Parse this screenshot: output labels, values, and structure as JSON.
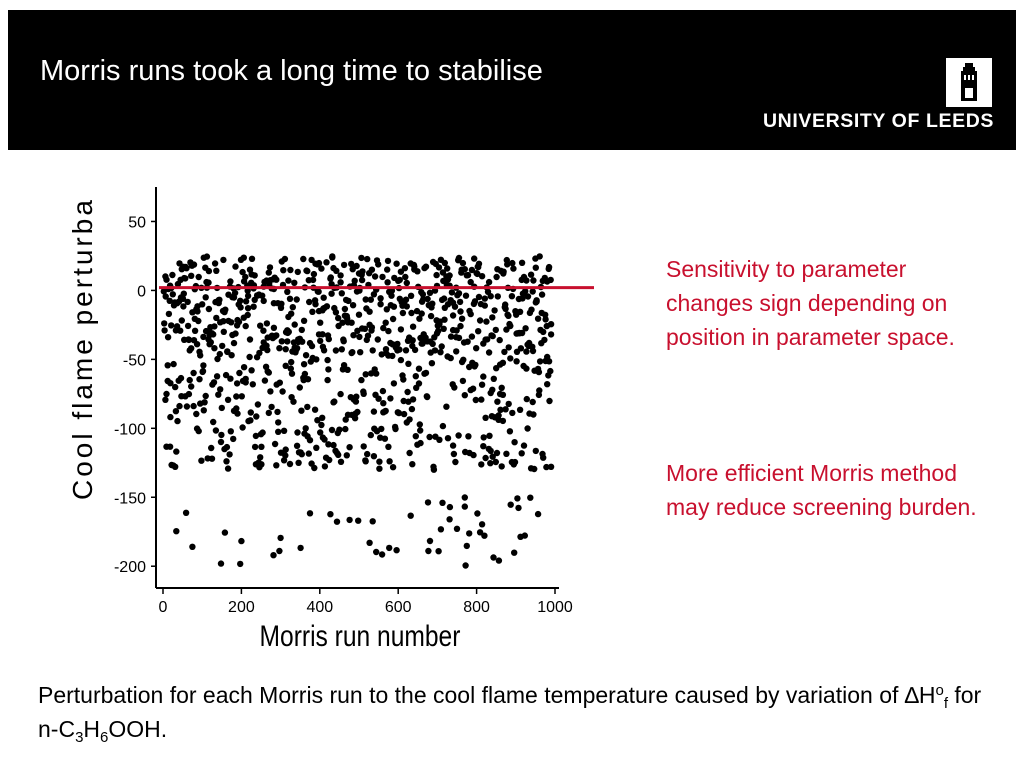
{
  "slide": {
    "title": "Morris runs took a long time to stabilise",
    "logo_text": "UNIVERSITY OF LEEDS",
    "notes": [
      "Sensitivity to parameter changes sign depending on position in parameter space.",
      "More efficient Morris method may reduce screening burden."
    ],
    "caption": {
      "part1": "Perturbation for each Morris run to the cool flame temperature caused by variation of ",
      "delta": "∆H",
      "sup_o": "o",
      "sub_f": "f",
      "part2": " for n-C",
      "sub_3": "3",
      "h": "H",
      "sub_6": "6",
      "part3": "OOH."
    },
    "colors": {
      "header_bg": "#000000",
      "accent_red": "#c8102e"
    }
  },
  "chart_data": {
    "type": "scatter",
    "xlabel": "Morris run number",
    "ylabel": "Cool flame perturba",
    "xlim": [
      0,
      1000
    ],
    "ylim": [
      -210,
      75
    ],
    "xticks": [
      0,
      200,
      400,
      600,
      800,
      1000
    ],
    "yticks": [
      50,
      0,
      -50,
      -100,
      -150,
      -200
    ],
    "reference_line": {
      "y": 2,
      "color": "#c8102e"
    },
    "marker_color": "#000000",
    "note": "approx. 1000 points, one per run; values estimated",
    "x": [],
    "y": []
  }
}
